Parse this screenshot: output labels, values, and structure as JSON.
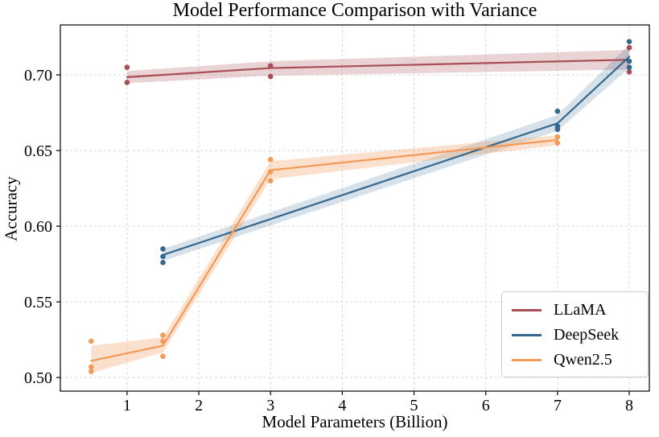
{
  "figure": {
    "background": "#ffffff",
    "grid_color": "#d2d2d2",
    "spine_color": "#000000"
  },
  "chart_data": {
    "type": "line",
    "title": "Model Performance Comparison with Variance",
    "xlabel": "Model Parameters (Billion)",
    "ylabel": "Accuracy",
    "xlim": [
      0.07,
      8.28
    ],
    "ylim": [
      0.491,
      0.733
    ],
    "xticks": [
      1,
      2,
      3,
      4,
      5,
      6,
      7,
      8
    ],
    "yticks": [
      0.5,
      0.55,
      0.6,
      0.65,
      0.7
    ],
    "grid": true,
    "grid_style": "dashed",
    "legend_position": "lower right",
    "series": [
      {
        "name": "LLaMA",
        "color": "#a84e54",
        "band_alpha": 0.25,
        "line": {
          "x": [
            1,
            3,
            8
          ],
          "y": [
            0.6985,
            0.7045,
            0.71
          ]
        },
        "band": {
          "x": [
            1,
            3,
            8
          ],
          "lower": [
            0.6945,
            0.6995,
            0.7035
          ],
          "upper": [
            0.7025,
            0.709,
            0.7165
          ]
        },
        "points": {
          "x": [
            1,
            1,
            3,
            3,
            8,
            8
          ],
          "y": [
            0.705,
            0.695,
            0.706,
            0.699,
            0.718,
            0.702
          ]
        }
      },
      {
        "name": "DeepSeek",
        "color": "#35688f",
        "band_alpha": 0.2,
        "line": {
          "x": [
            1.5,
            7,
            8
          ],
          "y": [
            0.581,
            0.668,
            0.712
          ]
        },
        "band": {
          "x": [
            1.5,
            7,
            8
          ],
          "lower": [
            0.577,
            0.663,
            0.7045
          ],
          "upper": [
            0.585,
            0.6735,
            0.72
          ]
        },
        "points": {
          "x": [
            1.5,
            1.5,
            1.5,
            7,
            7,
            7,
            8,
            8,
            8
          ],
          "y": [
            0.585,
            0.58,
            0.576,
            0.676,
            0.666,
            0.664,
            0.722,
            0.709,
            0.705
          ]
        }
      },
      {
        "name": "Qwen2.5",
        "color": "#f39a58",
        "band_alpha": 0.3,
        "line": {
          "x": [
            0.5,
            1.5,
            3,
            7
          ],
          "y": [
            0.511,
            0.521,
            0.637,
            0.657
          ]
        },
        "band": {
          "x": [
            0.5,
            1.5,
            3,
            7
          ],
          "lower": [
            0.503,
            0.5165,
            0.631,
            0.6535
          ],
          "upper": [
            0.521,
            0.5265,
            0.643,
            0.66
          ]
        },
        "points": {
          "x": [
            0.5,
            0.5,
            0.5,
            1.5,
            1.5,
            1.5,
            3,
            3,
            3,
            7,
            7
          ],
          "y": [
            0.524,
            0.507,
            0.504,
            0.528,
            0.524,
            0.514,
            0.644,
            0.636,
            0.63,
            0.659,
            0.655
          ]
        }
      }
    ]
  }
}
